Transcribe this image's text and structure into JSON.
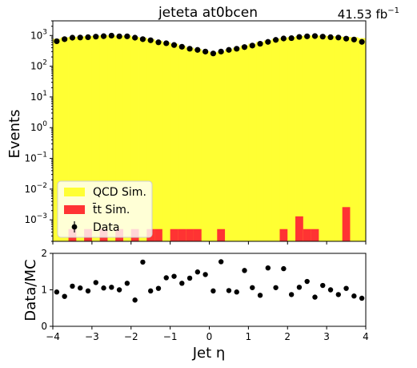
{
  "chart_data": [
    {
      "type": "bar",
      "panel": "main",
      "title": "jeteta  at0bcen",
      "lumi_label": "41.53 fb",
      "lumi_exponent": "−1",
      "xlabel": "",
      "ylabel": "Events",
      "yscale": "log",
      "xlim": [
        -4,
        4
      ],
      "ylim": [
        0.0002,
        3000
      ],
      "x_ticks": [
        -4,
        -3,
        -2,
        -1,
        0,
        1,
        2,
        3,
        4
      ],
      "y_ticks": [
        {
          "value": 0.001,
          "base": "10",
          "exp": "−3"
        },
        {
          "value": 0.01,
          "base": "10",
          "exp": "−2"
        },
        {
          "value": 0.1,
          "base": "10",
          "exp": "−1"
        },
        {
          "value": 1,
          "base": "10",
          "exp": "0"
        },
        {
          "value": 10,
          "base": "10",
          "exp": "1"
        },
        {
          "value": 100,
          "base": "10",
          "exp": "2"
        },
        {
          "value": 1000,
          "base": "10",
          "exp": "3"
        }
      ],
      "bin_edges": [
        -4,
        -3.8,
        -3.6,
        -3.4,
        -3.2,
        -3.0,
        -2.8,
        -2.6,
        -2.4,
        -2.2,
        -2.0,
        -1.8,
        -1.6,
        -1.4,
        -1.2,
        -1.0,
        -0.8,
        -0.6,
        -0.4,
        -0.2,
        0.0,
        0.2,
        0.4,
        0.6,
        0.8,
        1.0,
        1.2,
        1.4,
        1.6,
        1.8,
        2.0,
        2.2,
        2.4,
        2.6,
        2.8,
        3.0,
        3.2,
        3.4,
        3.6,
        3.8,
        4.0
      ],
      "legend": {
        "position": "lower-left",
        "entries": [
          {
            "label": "QCD Sim.",
            "color": "#ffff33"
          },
          {
            "label": "t̄t Sim.",
            "color": "#ff3333"
          },
          {
            "label": "Data",
            "color": "#000000"
          }
        ]
      },
      "series": [
        {
          "name": "QCD Sim.",
          "color": "#ffff33",
          "values": [
            780,
            870,
            900,
            920,
            960,
            980,
            1020,
            1000,
            980,
            1000,
            900,
            850,
            760,
            680,
            600,
            540,
            460,
            400,
            360,
            310,
            280,
            300,
            350,
            400,
            470,
            540,
            620,
            700,
            780,
            840,
            900,
            960,
            1000,
            1000,
            990,
            960,
            920,
            900,
            880,
            820
          ]
        },
        {
          "name": "t̄t Sim.",
          "color": "#ff3333",
          "values": [
            0,
            0,
            0.0005,
            0,
            0.0005,
            0,
            0.0005,
            0,
            0.0005,
            0,
            0.0005,
            0,
            0.0005,
            0.0005,
            0,
            0.0005,
            0.0005,
            0.0005,
            0.0005,
            0,
            0,
            0.0005,
            0,
            0,
            0,
            0,
            0,
            0,
            0,
            0.0005,
            0,
            0.0013,
            0.0005,
            0.0005,
            0,
            0,
            0,
            0.0026,
            0,
            0
          ]
        },
        {
          "name": "Data",
          "color": "#000000",
          "x": [
            -3.9,
            -3.7,
            -3.5,
            -3.3,
            -3.1,
            -2.9,
            -2.7,
            -2.5,
            -2.3,
            -2.1,
            -1.9,
            -1.7,
            -1.5,
            -1.3,
            -1.1,
            -0.9,
            -0.7,
            -0.5,
            -0.3,
            -0.1,
            0.1,
            0.3,
            0.5,
            0.7,
            0.9,
            1.1,
            1.3,
            1.5,
            1.7,
            1.9,
            2.1,
            2.3,
            2.5,
            2.7,
            2.9,
            3.1,
            3.3,
            3.5,
            3.7,
            3.9
          ],
          "values": [
            650,
            760,
            850,
            860,
            880,
            920,
            950,
            990,
            940,
            940,
            850,
            760,
            700,
            600,
            560,
            490,
            430,
            370,
            340,
            300,
            260,
            300,
            340,
            370,
            420,
            470,
            540,
            620,
            720,
            800,
            820,
            900,
            940,
            960,
            920,
            880,
            860,
            790,
            740,
            620
          ]
        }
      ]
    },
    {
      "type": "scatter",
      "panel": "ratio",
      "xlabel": "Jet η",
      "ylabel": "Data/MC",
      "xlim": [
        -4,
        4
      ],
      "ylim": [
        0,
        2
      ],
      "x_ticks": [
        -4,
        -3,
        -2,
        -1,
        0,
        1,
        2,
        3,
        4
      ],
      "y_ticks": [
        0,
        1,
        2
      ],
      "series": [
        {
          "name": "Data/MC",
          "color": "#000000",
          "x": [
            -3.9,
            -3.7,
            -3.5,
            -3.3,
            -3.1,
            -2.9,
            -2.7,
            -2.5,
            -2.3,
            -2.1,
            -1.9,
            -1.7,
            -1.5,
            -1.3,
            -1.1,
            -0.9,
            -0.7,
            -0.5,
            -0.3,
            -0.1,
            0.1,
            0.3,
            0.5,
            0.7,
            0.9,
            1.1,
            1.3,
            1.5,
            1.7,
            1.9,
            2.1,
            2.3,
            2.5,
            2.7,
            2.9,
            3.1,
            3.3,
            3.5,
            3.7,
            3.9
          ],
          "values": [
            0.94,
            0.82,
            1.1,
            1.05,
            0.97,
            1.2,
            1.05,
            1.07,
            1.0,
            1.18,
            0.72,
            1.76,
            0.97,
            1.04,
            1.33,
            1.37,
            1.18,
            1.32,
            1.49,
            1.42,
            0.97,
            1.77,
            0.98,
            0.94,
            1.53,
            1.06,
            0.85,
            1.6,
            1.06,
            1.58,
            0.87,
            1.07,
            1.23,
            0.8,
            1.12,
            1.0,
            0.87,
            1.04,
            0.83,
            0.77
          ],
          "errors": [
            0.03,
            0.03,
            0.03,
            0.03,
            0.03,
            0.03,
            0.03,
            0.03,
            0.03,
            0.03,
            0.03,
            0.04,
            0.03,
            0.03,
            0.04,
            0.04,
            0.04,
            0.04,
            0.05,
            0.05,
            0.05,
            0.06,
            0.05,
            0.05,
            0.06,
            0.05,
            0.05,
            0.05,
            0.05,
            0.05,
            0.04,
            0.04,
            0.04,
            0.03,
            0.03,
            0.03,
            0.03,
            0.03,
            0.03,
            0.03
          ]
        }
      ]
    }
  ]
}
